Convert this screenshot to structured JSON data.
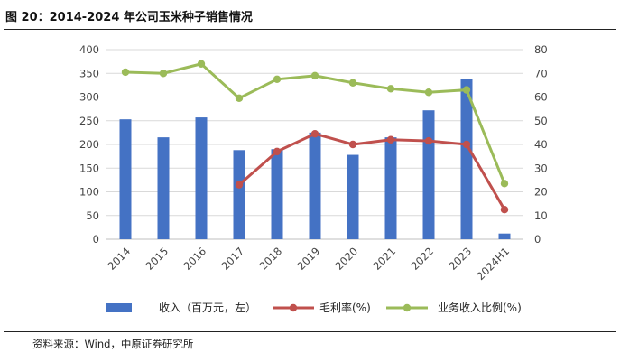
{
  "title": "图 20：2014-2024 年公司玉米种子销售情况",
  "source": "资料来源：Wind，中原证券研究所",
  "chart_data": {
    "type": "bar",
    "title": "图 20：2014-2024 年公司玉米种子销售情况",
    "categories": [
      "2014",
      "2015",
      "2016",
      "2017",
      "2018",
      "2019",
      "2020",
      "2021",
      "2022",
      "2023",
      "2024H1"
    ],
    "left_axis": {
      "min": 0,
      "max": 400,
      "step": 50,
      "ticks": [
        "0",
        "50",
        "100",
        "150",
        "200",
        "250",
        "300",
        "350",
        "400"
      ]
    },
    "right_axis": {
      "min": 0,
      "max": 80,
      "step": 10,
      "ticks": [
        "0",
        "10",
        "20",
        "30",
        "40",
        "50",
        "60",
        "70",
        "80"
      ]
    },
    "grid": true,
    "legend_position": "bottom",
    "series": [
      {
        "name": "收入（百万元，左）",
        "type": "bar",
        "axis": "left",
        "color": "#4472c4",
        "values": [
          253,
          215,
          257,
          188,
          190,
          225,
          178,
          215,
          272,
          338,
          12
        ]
      },
      {
        "name": "毛利率(%)",
        "type": "line",
        "axis": "right",
        "color": "#c0504d",
        "values": [
          null,
          null,
          null,
          23,
          37,
          44.5,
          40,
          42,
          41.5,
          40,
          12.5
        ]
      },
      {
        "name": "业务收入比例(%)",
        "type": "line",
        "axis": "right",
        "color": "#9bbb59",
        "values": [
          70.5,
          70,
          74,
          59.5,
          67.5,
          69,
          66,
          63.5,
          62,
          63,
          23.5
        ]
      }
    ]
  }
}
